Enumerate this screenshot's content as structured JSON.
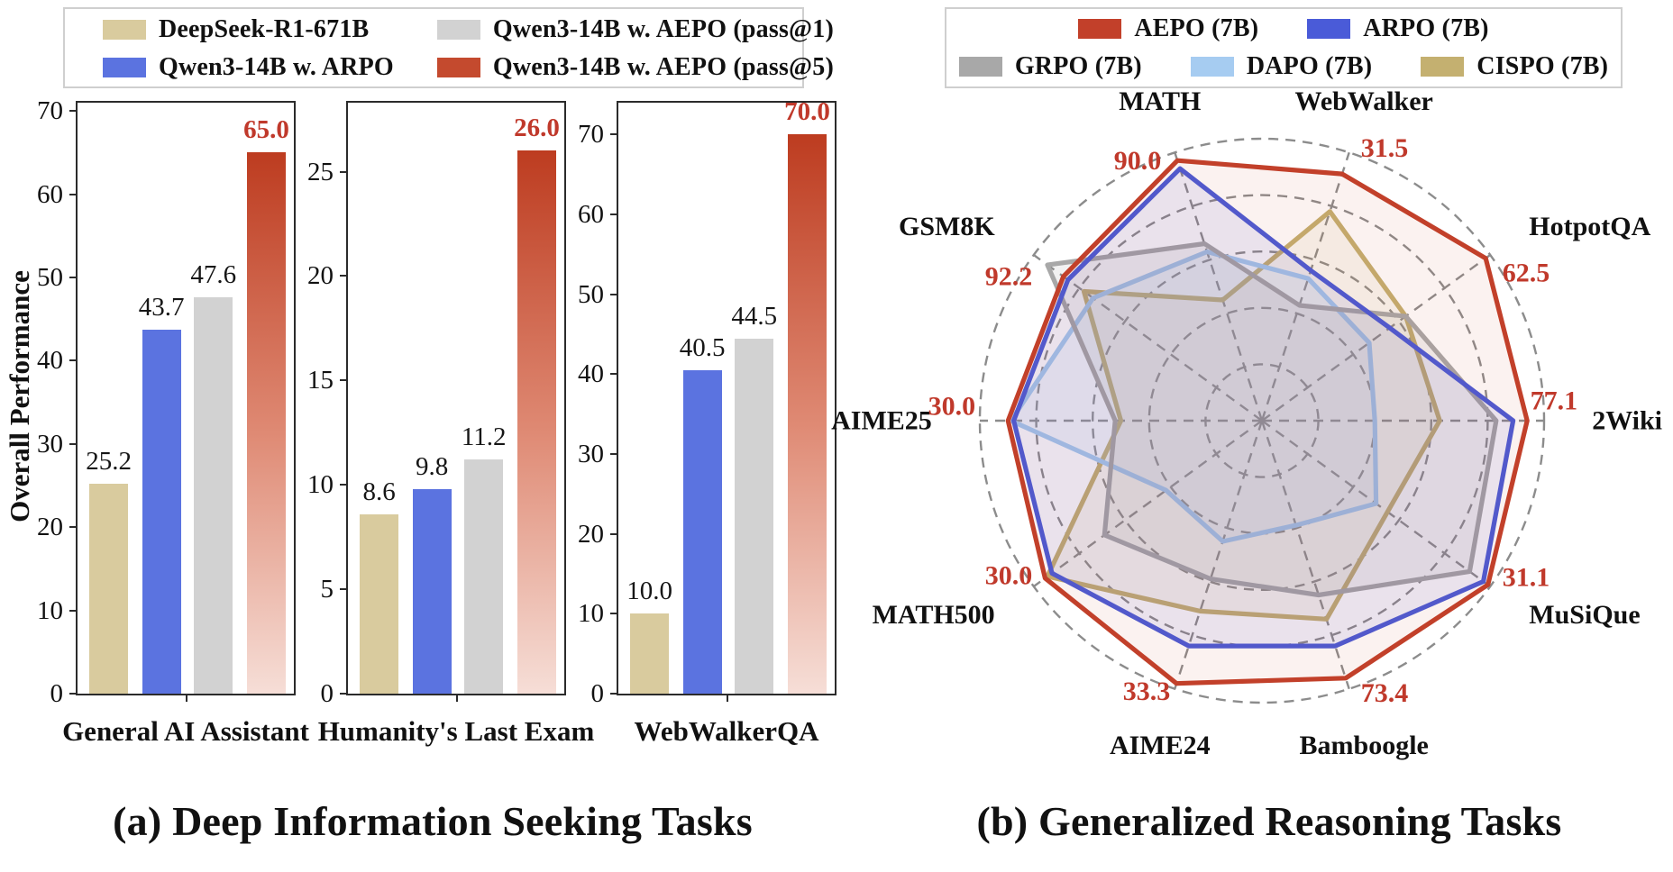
{
  "chart_data": [
    {
      "type": "bar",
      "panel": "a",
      "caption": "(a) Deep Information Seeking Tasks",
      "ylabel": "Overall Performance",
      "legend": [
        {
          "label": "DeepSeek-R1-671B",
          "color": "#d9cb9e"
        },
        {
          "label": "Qwen3-14B w. AEPO (pass@1)",
          "color": "#d2d2d2"
        },
        {
          "label": "Qwen3-14B w. ARPO",
          "color": "#5b73e0"
        },
        {
          "label": "Qwen3-14B w. AEPO (pass@5)",
          "color": "#c44a2e"
        }
      ],
      "bar_colors": [
        "#d9cb9e",
        "#5b73e0",
        "#d2d2d2",
        "gradient"
      ],
      "bar4_gradient": [
        "#bd3c20",
        "#df8a74",
        "#f6ded7"
      ],
      "groups": [
        {
          "title": "General AI Assistant",
          "ymax": 71,
          "yticks": [
            0,
            10,
            20,
            30,
            40,
            50,
            60,
            70
          ],
          "values": [
            25.2,
            43.7,
            47.6,
            65.0
          ],
          "labels": [
            "25.2",
            "43.7",
            "47.6",
            "65.0"
          ]
        },
        {
          "title": "Humanity's Last Exam",
          "ymax": 28.3,
          "yticks": [
            0,
            5,
            10,
            15,
            20,
            25
          ],
          "values": [
            8.6,
            9.8,
            11.2,
            26.0
          ],
          "labels": [
            "8.6",
            "9.8",
            "11.2",
            "26.0"
          ]
        },
        {
          "title": "WebWalkerQA",
          "ymax": 74,
          "yticks": [
            0,
            10,
            20,
            30,
            40,
            50,
            60,
            70
          ],
          "values": [
            10.0,
            40.5,
            44.5,
            70.0
          ],
          "labels": [
            "10.0",
            "40.5",
            "44.5",
            "70.0"
          ]
        }
      ]
    },
    {
      "type": "radar",
      "panel": "b",
      "caption": "(b) Generalized Reasoning Tasks",
      "axes": [
        "MATH",
        "WebWalker",
        "HotpotQA",
        "2Wiki",
        "MuSiQue",
        "Bamboogle",
        "AIME24",
        "MATH500",
        "AIME25",
        "GSM8K"
      ],
      "aepo_labeled_values": [
        "90.0",
        "31.5",
        "62.5",
        "77.1",
        "31.1",
        "73.4",
        "33.3",
        "30.0",
        "30.0",
        "92.2"
      ],
      "grid": {
        "rings": 5,
        "color": "#8c8c8c",
        "style": "dashed"
      },
      "legend_rows": [
        [
          "AEPO (7B)",
          "ARPO (7B)"
        ],
        [
          "GRPO (7B)",
          "DAPO (7B)",
          "CISPO (7B)"
        ]
      ],
      "series": [
        {
          "name": "CISPO (7B)",
          "color": "#c4b070",
          "fill": "rgba(196,176,112,0.10)",
          "relative_radius": [
            0.45,
            0.78,
            0.63,
            0.63,
            0.55,
            0.74,
            0.71,
            0.94,
            0.5,
            0.78
          ]
        },
        {
          "name": "DAPO (7B)",
          "color": "#a6ccf1",
          "fill": "rgba(166,204,241,0.14)",
          "relative_radius": [
            0.63,
            0.53,
            0.47,
            0.4,
            0.5,
            0.39,
            0.45,
            0.42,
            0.89,
            0.74
          ]
        },
        {
          "name": "GRPO (7B)",
          "color": "#a8a8a8",
          "fill": "rgba(150,150,150,0.12)",
          "relative_radius": [
            0.66,
            0.43,
            0.63,
            0.83,
            0.91,
            0.65,
            0.59,
            0.69,
            0.52,
            0.94
          ]
        },
        {
          "name": "ARPO (7B)",
          "color": "#4a5bd8",
          "fill": "rgba(74,91,216,0.10)",
          "relative_radius": [
            0.94,
            0.56,
            0.56,
            0.89,
            0.97,
            0.84,
            0.84,
            0.92,
            0.88,
            0.85
          ]
        },
        {
          "name": "AEPO (7B)",
          "color": "#c2402a",
          "fill": "rgba(194,64,42,0.07)",
          "relative_radius": [
            0.97,
            0.92,
            0.98,
            0.94,
            0.99,
            0.96,
            0.98,
            0.95,
            0.9,
            0.87
          ]
        }
      ],
      "series_legend_colors": {
        "AEPO (7B)": "#c2402a",
        "ARPO (7B)": "#4a5bd8",
        "GRPO (7B)": "#a8a8a8",
        "DAPO (7B)": "#a6ccf1",
        "CISPO (7B)": "#c4b070"
      }
    }
  ]
}
